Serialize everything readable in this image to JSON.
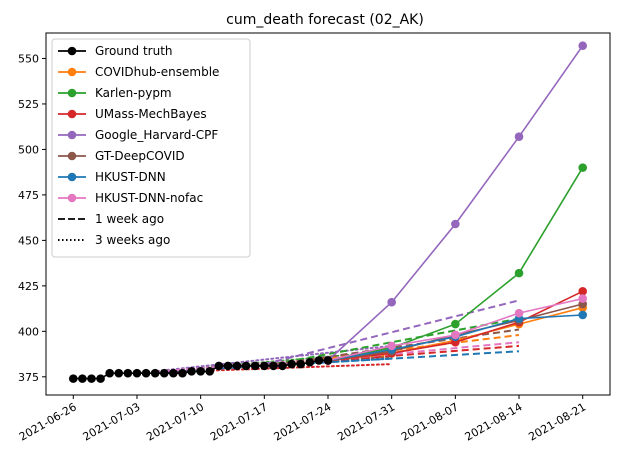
{
  "chart_data": {
    "type": "line",
    "title": "cum_death forecast (02_AK)",
    "xlabel": "",
    "ylabel": "",
    "x_ticks": [
      "2021-06-26",
      "2021-07-03",
      "2021-07-10",
      "2021-07-17",
      "2021-07-24",
      "2021-07-31",
      "2021-08-07",
      "2021-08-14",
      "2021-08-21"
    ],
    "y_ticks": [
      375,
      400,
      425,
      450,
      475,
      500,
      525,
      550
    ],
    "xlim": [
      "2021-06-23",
      "2021-08-24"
    ],
    "ylim": [
      365,
      564
    ],
    "legend_position": "upper-left",
    "legend": [
      {
        "label": "Ground truth",
        "color": "#000000",
        "style": "marker"
      },
      {
        "label": "COVIDhub-ensemble",
        "color": "#ff7f0e",
        "style": "marker"
      },
      {
        "label": "Karlen-pypm",
        "color": "#2ca02c",
        "style": "marker"
      },
      {
        "label": "UMass-MechBayes",
        "color": "#d62728",
        "style": "marker"
      },
      {
        "label": "Google_Harvard-CPF",
        "color": "#9467bd",
        "style": "marker"
      },
      {
        "label": "GT-DeepCOVID",
        "color": "#8c564b",
        "style": "marker"
      },
      {
        "label": "HKUST-DNN",
        "color": "#1f77b4",
        "style": "marker"
      },
      {
        "label": "HKUST-DNN-nofac",
        "color": "#e377c2",
        "style": "marker"
      },
      {
        "label": "1 week ago",
        "color": "#000000",
        "style": "dashed"
      },
      {
        "label": "3 weeks ago",
        "color": "#000000",
        "style": "dotted"
      }
    ],
    "ground_truth": {
      "color": "#000000",
      "x": [
        "2021-06-26",
        "2021-06-27",
        "2021-06-28",
        "2021-06-29",
        "2021-06-30",
        "2021-07-01",
        "2021-07-02",
        "2021-07-03",
        "2021-07-04",
        "2021-07-05",
        "2021-07-06",
        "2021-07-07",
        "2021-07-08",
        "2021-07-09",
        "2021-07-10",
        "2021-07-11",
        "2021-07-12",
        "2021-07-13",
        "2021-07-14",
        "2021-07-15",
        "2021-07-16",
        "2021-07-17",
        "2021-07-18",
        "2021-07-19",
        "2021-07-20",
        "2021-07-21",
        "2021-07-22",
        "2021-07-23",
        "2021-07-24"
      ],
      "y": [
        374,
        374,
        374,
        374,
        377,
        377,
        377,
        377,
        377,
        377,
        377,
        377,
        377,
        378,
        378,
        378,
        381,
        381,
        381,
        381,
        381,
        381,
        381,
        381,
        382,
        382,
        383,
        384,
        384
      ]
    },
    "forecasts": [
      {
        "color": "#ff7f0e",
        "x": [
          "2021-07-24",
          "2021-07-31",
          "2021-08-07",
          "2021-08-14",
          "2021-08-21"
        ],
        "y": [
          384,
          388,
          395,
          404,
          413
        ]
      },
      {
        "color": "#2ca02c",
        "x": [
          "2021-07-24",
          "2021-07-31",
          "2021-08-07",
          "2021-08-14",
          "2021-08-21"
        ],
        "y": [
          384,
          391,
          404,
          432,
          490
        ]
      },
      {
        "color": "#d62728",
        "x": [
          "2021-07-24",
          "2021-07-31",
          "2021-08-07",
          "2021-08-14",
          "2021-08-21"
        ],
        "y": [
          384,
          388,
          394,
          405,
          422
        ]
      },
      {
        "color": "#9467bd",
        "x": [
          "2021-07-24",
          "2021-07-31",
          "2021-08-07",
          "2021-08-14",
          "2021-08-21"
        ],
        "y": [
          384,
          416,
          459,
          507,
          557
        ]
      },
      {
        "color": "#8c564b",
        "x": [
          "2021-07-24",
          "2021-07-31",
          "2021-08-07",
          "2021-08-14",
          "2021-08-21"
        ],
        "y": [
          384,
          389,
          398,
          406,
          415
        ]
      },
      {
        "color": "#1f77b4",
        "x": [
          "2021-07-24",
          "2021-07-31",
          "2021-08-07",
          "2021-08-14",
          "2021-08-21"
        ],
        "y": [
          384,
          390,
          397,
          407,
          409
        ]
      },
      {
        "color": "#e377c2",
        "x": [
          "2021-07-24",
          "2021-07-31",
          "2021-08-07",
          "2021-08-14",
          "2021-08-21"
        ],
        "y": [
          384,
          392,
          398,
          410,
          418
        ]
      }
    ],
    "one_week_ago": [
      {
        "color": "#ff7f0e",
        "x": [
          "2021-07-17",
          "2021-08-14"
        ],
        "y": [
          381,
          398
        ]
      },
      {
        "color": "#2ca02c",
        "x": [
          "2021-07-17",
          "2021-08-14"
        ],
        "y": [
          381,
          407
        ]
      },
      {
        "color": "#d62728",
        "x": [
          "2021-07-17",
          "2021-08-14"
        ],
        "y": [
          381,
          392
        ]
      },
      {
        "color": "#9467bd",
        "x": [
          "2021-07-17",
          "2021-08-14"
        ],
        "y": [
          382,
          417
        ]
      },
      {
        "color": "#8c564b",
        "x": [
          "2021-07-17",
          "2021-08-14"
        ],
        "y": [
          381,
          401
        ]
      },
      {
        "color": "#1f77b4",
        "x": [
          "2021-07-17",
          "2021-08-14"
        ],
        "y": [
          381,
          389
        ]
      },
      {
        "color": "#e377c2",
        "x": [
          "2021-07-17",
          "2021-08-14"
        ],
        "y": [
          381,
          394
        ]
      }
    ],
    "three_weeks_ago": [
      {
        "color": "#ff7f0e",
        "x": [
          "2021-07-03",
          "2021-07-31"
        ],
        "y": [
          377,
          387
        ]
      },
      {
        "color": "#2ca02c",
        "x": [
          "2021-07-03",
          "2021-07-31"
        ],
        "y": [
          377,
          389
        ]
      },
      {
        "color": "#d62728",
        "x": [
          "2021-07-03",
          "2021-07-31"
        ],
        "y": [
          377,
          382
        ]
      },
      {
        "color": "#9467bd",
        "x": [
          "2021-07-03",
          "2021-07-31"
        ],
        "y": [
          377,
          392
        ]
      },
      {
        "color": "#8c564b",
        "x": [
          "2021-07-03",
          "2021-07-31"
        ],
        "y": [
          377,
          386
        ]
      },
      {
        "color": "#1f77b4",
        "x": [
          "2021-07-03",
          "2021-07-31"
        ],
        "y": [
          377,
          385
        ]
      },
      {
        "color": "#e377c2",
        "x": [
          "2021-07-03",
          "2021-07-31"
        ],
        "y": [
          377,
          388
        ]
      }
    ]
  }
}
